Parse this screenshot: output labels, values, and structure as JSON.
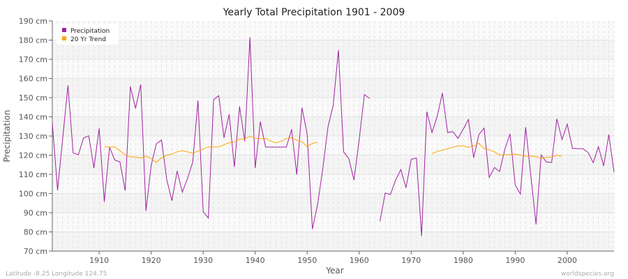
{
  "chart_data": {
    "type": "line",
    "title": "Yearly Total Precipitation 1901 - 2009",
    "xlabel": "Year",
    "ylabel": "Precipitation",
    "xlim": [
      1901,
      2009
    ],
    "ylim": [
      70,
      190
    ],
    "y_unit": "cm",
    "x_ticks": [
      1910,
      1920,
      1930,
      1940,
      1950,
      1960,
      1970,
      1980,
      1990,
      2000
    ],
    "y_ticks": [
      "70 cm",
      "80 cm",
      "90 cm",
      "100 cm",
      "110 cm",
      "120 cm",
      "130 cm",
      "140 cm",
      "150 cm",
      "160 cm",
      "170 cm",
      "180 cm",
      "190 cm"
    ],
    "grid": true,
    "legend_placement": "top-left",
    "series": [
      {
        "name": "Precipitation",
        "color": "#a020a0",
        "start_year": 1901,
        "values": [
          136.6,
          101.7,
          129,
          156.4,
          121.2,
          120.2,
          129,
          130.1,
          113.3,
          134,
          95.7,
          124.2,
          117.5,
          116.5,
          101.5,
          155.8,
          144.4,
          156.9,
          91,
          114.6,
          126,
          127.9,
          107.2,
          96.3,
          111.8,
          100.7,
          108,
          116.5,
          148.5,
          90.6,
          87.2,
          149,
          151,
          129.1,
          141.3,
          113.9,
          145.4,
          127.2,
          181.5,
          113.3,
          137.5,
          124.2,
          124.2,
          124.2,
          124.2,
          124.2,
          133.5,
          109.9,
          144.8,
          131,
          81.5,
          94.2,
          113,
          134.7,
          146,
          174.8,
          121.7,
          118.2,
          107,
          128.2,
          151.6,
          149.6,
          null,
          85.5,
          100.3,
          99.5,
          107,
          112.5,
          103,
          117.9,
          118.5,
          77.9,
          142.7,
          131.8,
          140.3,
          152.4,
          131.8,
          132.3,
          128.8,
          133.5,
          138.6,
          118.7,
          130.7,
          134.1,
          108.4,
          113.6,
          111.5,
          123.1,
          131.1,
          104.4,
          99.8,
          134.6,
          109.4,
          83.9,
          120.1,
          116.4,
          116.2,
          139,
          128.2,
          136.2,
          123.6,
          123.4,
          123.4,
          121.5,
          116.1,
          124.4,
          114.4,
          130.7,
          111.2
        ]
      },
      {
        "name": "20 Yr Trend",
        "color": "#ffa500",
        "start_year": 1911,
        "values": [
          124.4,
          124.2,
          124.4,
          122.3,
          120.2,
          119.1,
          119.1,
          118.5,
          119.5,
          118.3,
          116.2,
          118.7,
          120,
          120.6,
          121.8,
          122.4,
          121.8,
          121,
          122.1,
          123.2,
          124.3,
          124.2,
          124.3,
          125.4,
          126.5,
          127,
          128.4,
          128.4,
          129.8,
          128.8,
          128.6,
          128.8,
          127.3,
          126.5,
          127.2,
          128.8,
          129.2,
          127.8,
          127,
          124.4,
          126.2,
          126.7,
          null,
          null,
          null,
          null,
          null,
          null,
          null,
          null,
          null,
          null,
          null,
          null,
          null,
          null,
          null,
          null,
          null,
          null,
          null,
          null,
          null,
          120.9,
          121.9,
          122.7,
          123.3,
          124.1,
          124.8,
          124.9,
          124.1,
          124.8,
          126.2,
          123.5,
          122.8,
          121.8,
          120.1,
          120.3,
          120.3,
          120.5,
          120.1,
          119.5,
          119.5,
          119.3,
          118.3,
          119,
          119,
          120,
          119.4
        ]
      }
    ]
  },
  "footer": {
    "coords": "Latitude -8.25 Longitude 124.75",
    "site": "worldspecies.org"
  }
}
